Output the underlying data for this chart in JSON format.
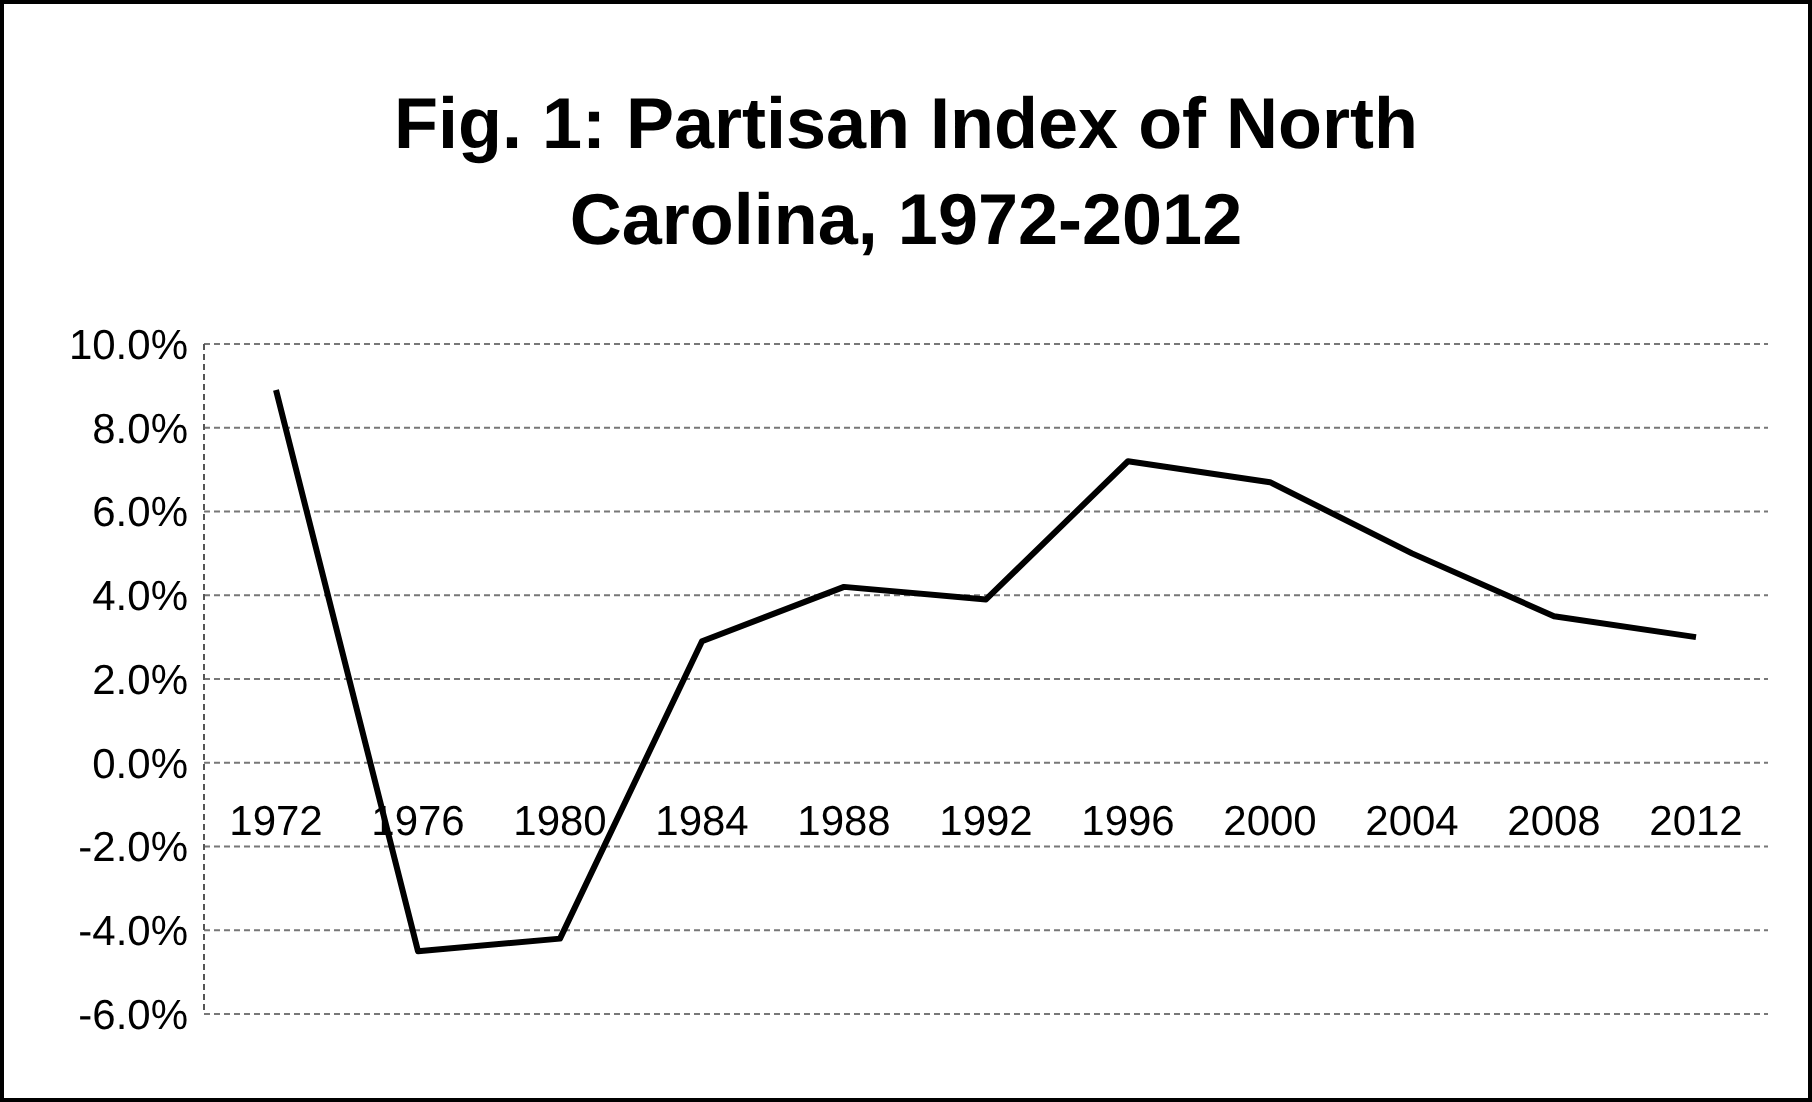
{
  "chart_data": {
    "type": "line",
    "title": "Fig. 1: Partisan Index of North Carolina, 1972-2012",
    "categories": [
      "1972",
      "1976",
      "1980",
      "1984",
      "1988",
      "1992",
      "1996",
      "2000",
      "2004",
      "2008",
      "2012"
    ],
    "series": [
      {
        "color": "#000000",
        "values": [
          8.9,
          -4.5,
          -4.2,
          2.9,
          4.2,
          3.9,
          7.2,
          6.7,
          5.0,
          3.5,
          3.0
        ]
      }
    ],
    "ylim": [
      -6,
      10
    ],
    "yticks": [
      {
        "value": -6,
        "label": "-6.0%"
      },
      {
        "value": -4,
        "label": "-4.0%"
      },
      {
        "value": -2,
        "label": "-2.0%"
      },
      {
        "value": 0,
        "label": "0.0%"
      },
      {
        "value": 2,
        "label": "2.0%"
      },
      {
        "value": 4,
        "label": "4.0%"
      },
      {
        "value": 6,
        "label": "6.0%"
      },
      {
        "value": 8,
        "label": "8.0%"
      },
      {
        "value": 10,
        "label": "10.0%"
      }
    ],
    "grid": "y",
    "legend": false,
    "marker": "none",
    "line_style": "solid"
  }
}
